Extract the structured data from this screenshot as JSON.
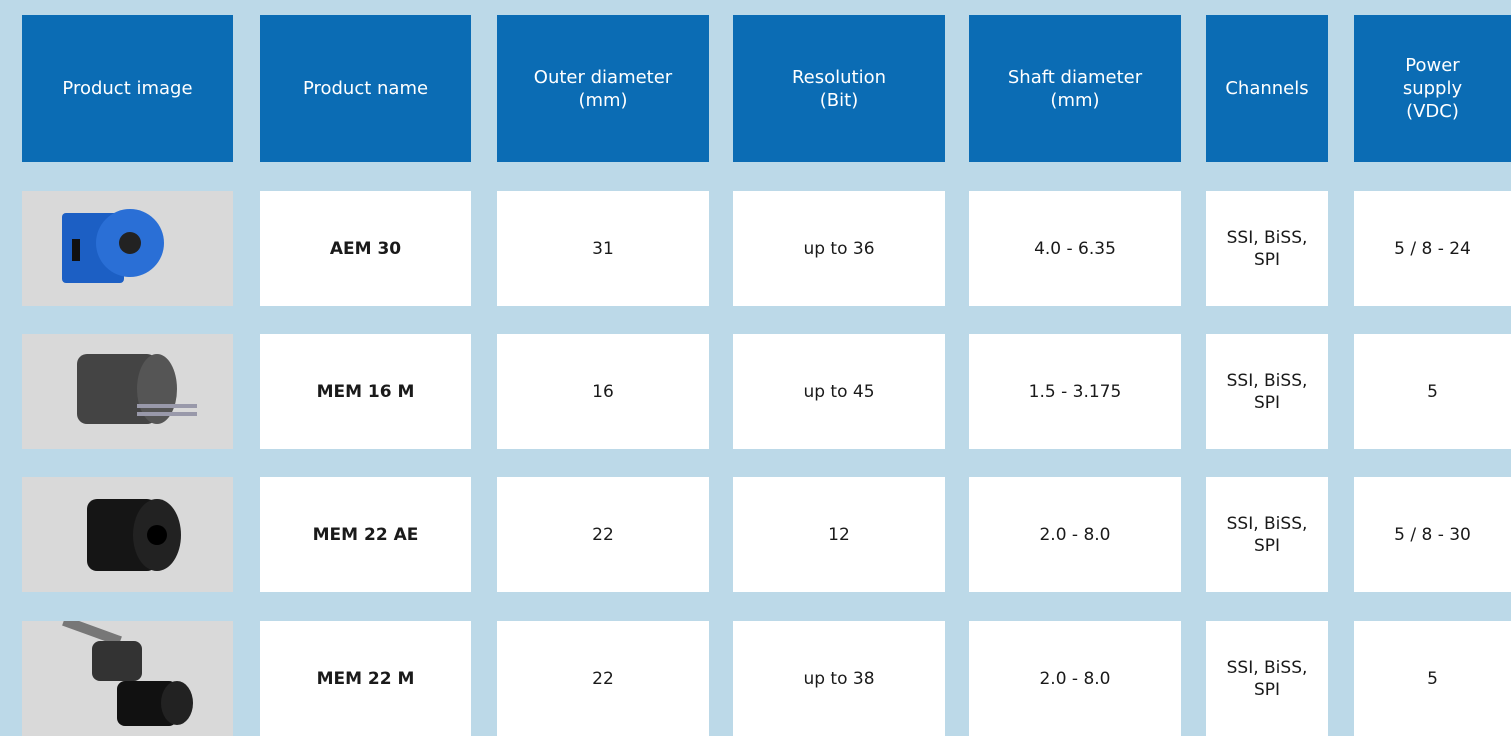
{
  "table": {
    "header": [
      "Product image",
      "Product name",
      "Outer diameter\n(mm)",
      "Resolution\n(Bit)",
      "Shaft diameter\n(mm)",
      "Channels",
      "Power\nsupply\n(VDC)"
    ],
    "rows": [
      [
        "AEM 30",
        "31",
        "up to 36",
        "4.0 - 6.35",
        "SSI, BiSS,\nSPI",
        "5 / 8 - 24"
      ],
      [
        "MEM 16 M",
        "16",
        "up to 45",
        "1.5 - 3.175",
        "SSI, BiSS,\nSPI",
        "5"
      ],
      [
        "MEM 22 AE",
        "22",
        "12",
        "2.0 - 8.0",
        "SSI, BiSS,\nSPI",
        "5 / 8 - 30"
      ],
      [
        "MEM 22 M",
        "22",
        "up to 38",
        "2.0 - 8.0",
        "SSI, BiSS,\nSPI",
        "5"
      ]
    ]
  }
}
